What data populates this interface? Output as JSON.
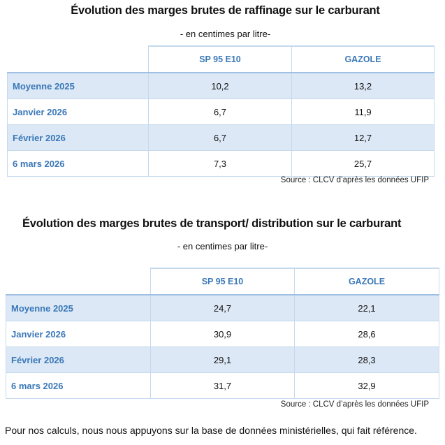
{
  "tables": [
    {
      "title": "Évolution des marges brutes de raffinage sur le carburant",
      "subtitle": "- en centimes par litre-",
      "columns": [
        "SP 95 E10",
        "GAZOLE"
      ],
      "rows": [
        {
          "label": "Moyenne 2025",
          "values": [
            "10,2",
            "13,2"
          ]
        },
        {
          "label": "Janvier 2026",
          "values": [
            "6,7",
            "11,9"
          ]
        },
        {
          "label": "Février 2026",
          "values": [
            "6,7",
            "12,7"
          ]
        },
        {
          "label": "6 mars 2026",
          "values": [
            "7,3",
            "25,7"
          ]
        }
      ],
      "source": "Source : CLCV d’après les données UFIP"
    },
    {
      "title": "Évolution des marges brutes de transport/ distribution sur le carburant",
      "subtitle": "- en centimes par litre-",
      "columns": [
        "SP 95 E10",
        "GAZOLE"
      ],
      "rows": [
        {
          "label": "Moyenne 2025",
          "values": [
            "24,7",
            "22,1"
          ]
        },
        {
          "label": "Janvier 2026",
          "values": [
            "30,9",
            "28,6"
          ]
        },
        {
          "label": "Février 2026",
          "values": [
            "29,1",
            "28,3"
          ]
        },
        {
          "label": "6 mars 2026",
          "values": [
            "31,7",
            "32,9"
          ]
        }
      ],
      "source": "Source : CLCV d’après les données UFIP"
    }
  ],
  "footnote": "Pour nos calculs, nous nous appuyons sur la base de données ministérielles, qui fait référence.",
  "colors": {
    "header_text": "#3a78b8",
    "shade": "#dce8f5",
    "border": "#c5d9ee"
  }
}
